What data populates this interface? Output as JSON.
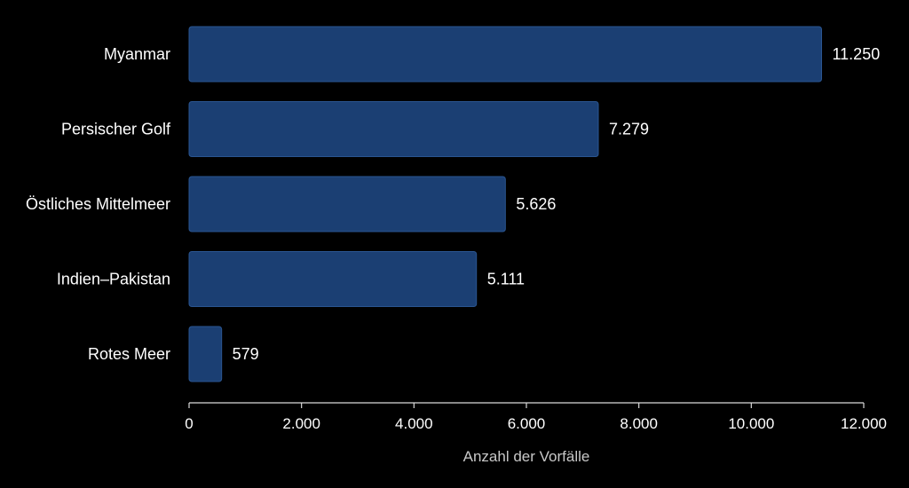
{
  "chart_data": {
    "type": "bar",
    "orientation": "horizontal",
    "categories": [
      "Myanmar",
      "Persischer Golf",
      "Östliches Mittelmeer",
      "Indien–Pakistan",
      "Rotes Meer"
    ],
    "values": [
      11250,
      7279,
      5626,
      5111,
      579
    ],
    "value_labels": [
      "11.250",
      "7.279",
      "5.626",
      "5.111",
      "579"
    ],
    "xlabel": "Anzahl der Vorfälle",
    "xlim": [
      0,
      12000
    ],
    "x_ticks": [
      0,
      2000,
      4000,
      6000,
      8000,
      10000,
      12000
    ],
    "x_tick_labels": [
      "0",
      "2.000",
      "4.000",
      "6.000",
      "8.000",
      "10.000",
      "12.000"
    ],
    "grid": false,
    "colors": {
      "background": "#000000",
      "bar": "#1b3f73",
      "bar_edge": "#2a5590",
      "axis": "#d9d9d9",
      "text": "#ffffff",
      "axis_title": "#c8c8c8"
    }
  }
}
